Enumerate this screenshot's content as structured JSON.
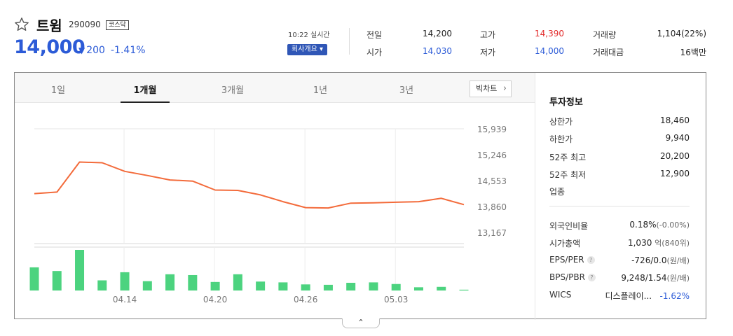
{
  "stock": {
    "name": "트윔",
    "code": "290090",
    "market": "코스닥",
    "price": "14,000",
    "change_arrow": "▼",
    "change": "200",
    "change_pct": "-1.41%"
  },
  "realtime": {
    "time": "10:22 실시간",
    "company_btn": "회사개요 ▾"
  },
  "quotes": {
    "prev_label": "전일",
    "prev": "14,200",
    "open_label": "시가",
    "open": "14,030",
    "high_label": "고가",
    "high": "14,390",
    "low_label": "저가",
    "low": "14,000",
    "volume_label": "거래량",
    "volume": "1,104(22%)",
    "amount_label": "거래대금",
    "amount": "16백만"
  },
  "tabs": [
    "1일",
    "1개월",
    "3개월",
    "1년",
    "3년"
  ],
  "active_tab": 1,
  "big_chart_label": "빅차트",
  "info": {
    "title": "투자정보",
    "upper_label": "상한가",
    "upper": "18,460",
    "lower_label": "하한가",
    "lower": "9,940",
    "high52_label": "52주 최고",
    "high52": "20,200",
    "low52_label": "52주 최저",
    "low52": "12,900",
    "sector_label": "업종",
    "foreign_label": "외국인비율",
    "foreign": "0.18%",
    "foreign_chg": "(-0.00%)",
    "cap_label": "시가총액",
    "cap": "1,030",
    "cap_unit": "억",
    "cap_usd": "(840위)",
    "eps_label": "EPS/PER",
    "eps": "-726/0.0",
    "eps_unit": "(원/배)",
    "bps_label": "BPS/PBR",
    "bps": "9,248/1.54",
    "bps_unit": "(원/배)",
    "wics_label": "WICS",
    "wics": "디스플레이...",
    "wics_pct": "-1.62%"
  },
  "colors": {
    "up": "#e22a2a",
    "down": "#2c5bd7",
    "line": "#f36b3b",
    "volume": "#4cd37f"
  },
  "chart_data": {
    "type": "line",
    "y_ticks": [
      15939,
      15246,
      14553,
      13860,
      13167
    ],
    "ylim": [
      13167,
      15939
    ],
    "x_labels": [
      "04.14",
      "04.20",
      "04.26",
      "05.03"
    ],
    "series": [
      {
        "values": [
          14205,
          14245,
          15050,
          15030,
          14800,
          14690,
          14570,
          14540,
          14300,
          14290,
          14170,
          13990,
          13830,
          13820,
          13950,
          13960,
          13975,
          13990,
          14080,
          13910
        ]
      }
    ],
    "volume": [
      0.57,
      0.48,
      1.0,
      0.25,
      0.45,
      0.23,
      0.4,
      0.38,
      0.21,
      0.4,
      0.22,
      0.2,
      0.15,
      0.14,
      0.19,
      0.2,
      0.16,
      0.08,
      0.09,
      0.02
    ]
  },
  "fold_label": "⌃"
}
